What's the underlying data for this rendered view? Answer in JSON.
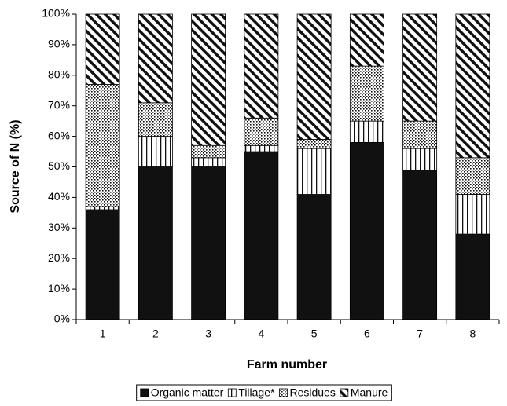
{
  "chart_data": {
    "type": "stacked_bar",
    "x_label": "Farm number",
    "y_label": "Source of N (%)",
    "categories": [
      "1",
      "2",
      "3",
      "4",
      "5",
      "6",
      "7",
      "8"
    ],
    "series": [
      {
        "name": "Organic matter",
        "color": "#111111",
        "pattern": "solid",
        "values": [
          36,
          50,
          50,
          55,
          41,
          58,
          49,
          28
        ]
      },
      {
        "name": "Tillage*",
        "color": "#111111",
        "pattern": "vertical",
        "values": [
          1,
          10,
          3,
          2,
          15,
          7,
          7,
          13
        ]
      },
      {
        "name": "Residues",
        "color": "#111111",
        "pattern": "dots",
        "values": [
          40,
          11,
          4,
          9,
          3,
          18,
          9,
          12
        ]
      },
      {
        "name": "Manure",
        "color": "#111111",
        "pattern": "diagonal",
        "values": [
          23,
          29,
          43,
          34,
          41,
          17,
          35,
          47
        ]
      }
    ],
    "ylim": [
      0,
      100
    ],
    "yticks": [
      {
        "value": 0,
        "label": "0%"
      },
      {
        "value": 10,
        "label": "10%"
      },
      {
        "value": 20,
        "label": "20%"
      },
      {
        "value": 30,
        "label": "30%"
      },
      {
        "value": 40,
        "label": "40%"
      },
      {
        "value": 50,
        "label": "50%"
      },
      {
        "value": 60,
        "label": "60%"
      },
      {
        "value": 70,
        "label": "70%"
      },
      {
        "value": 80,
        "label": "80%"
      },
      {
        "value": 90,
        "label": "90%"
      },
      {
        "value": 100,
        "label": "100%"
      }
    ],
    "grid": false,
    "legend": "bottom"
  }
}
